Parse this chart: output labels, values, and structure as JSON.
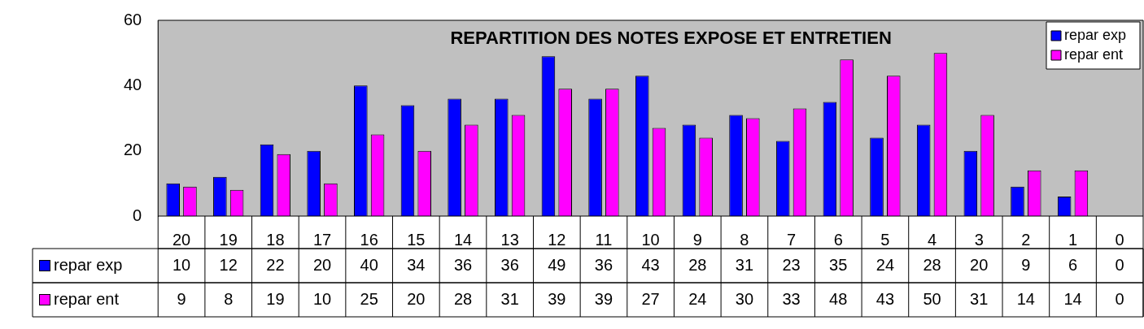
{
  "chart_data": {
    "type": "bar",
    "title": "REPARTITION DES NOTES EXPOSE ET ENTRETIEN",
    "categories": [
      "20",
      "19",
      "18",
      "17",
      "16",
      "15",
      "14",
      "13",
      "12",
      "11",
      "10",
      "9",
      "8",
      "7",
      "6",
      "5",
      "4",
      "3",
      "2",
      "1",
      "0"
    ],
    "series": [
      {
        "name": "repar exp",
        "color": "#0000ff",
        "values": [
          10,
          12,
          22,
          20,
          40,
          34,
          36,
          36,
          49,
          36,
          43,
          28,
          31,
          23,
          35,
          24,
          28,
          20,
          9,
          6,
          0
        ]
      },
      {
        "name": "repar ent",
        "color": "#ff00ff",
        "values": [
          9,
          8,
          19,
          10,
          25,
          20,
          28,
          31,
          39,
          39,
          27,
          24,
          30,
          33,
          48,
          43,
          50,
          31,
          14,
          14,
          0
        ]
      }
    ],
    "ylim": [
      0,
      60
    ],
    "yticks": [
      0,
      20,
      40,
      60
    ],
    "grid": false,
    "legend": "top right",
    "data_labels": true
  }
}
